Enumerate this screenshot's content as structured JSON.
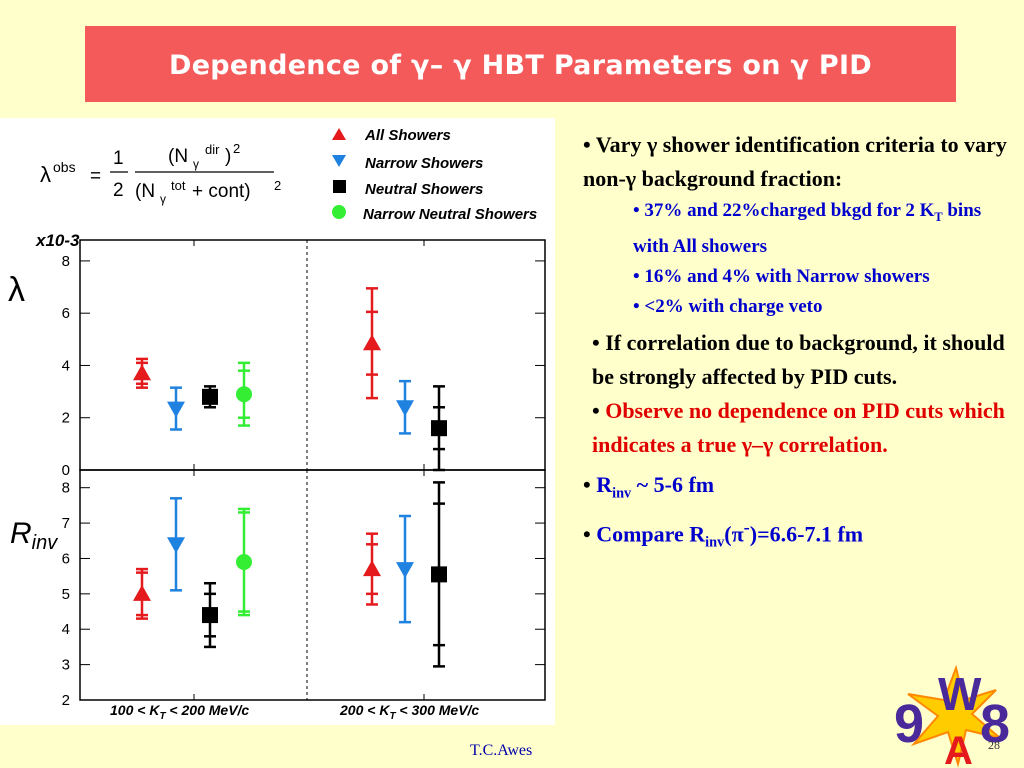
{
  "slide": {
    "title": "Dependence of γ– γ HBT Parameters on γ PID",
    "footer": "T.C.Awes",
    "page": "28",
    "logo_text": [
      "9",
      "W",
      "A",
      "8"
    ]
  },
  "formula": {
    "lhs": "λ",
    "lhs_sup": "obs",
    "eq": "=",
    "num1": "1",
    "den1": "2",
    "num2_a": "(N",
    "num2_sub": "γ",
    "num2_sup": "dir",
    "num2_b": ")",
    "num2_exp": "2",
    "den2_a": "(N",
    "den2_sub": "γ",
    "den2_sup": "tot",
    "den2_b": " + cont)",
    "den2_exp": "2"
  },
  "legend": [
    {
      "label": "All Showers",
      "color": "#e41a1c",
      "marker": "triangle-up"
    },
    {
      "label": "Narrow Showers",
      "color": "#1f82e0",
      "marker": "triangle-down"
    },
    {
      "label": "Neutral Showers",
      "color": "#000000",
      "marker": "square"
    },
    {
      "label": "Narrow Neutral Showers",
      "color": "#33ee33",
      "marker": "circle"
    }
  ],
  "bullets": {
    "b1_pre": "• Vary ",
    "b1_gamma": "γ",
    "b1_post": " shower identification criteria to vary non-γ background fraction:",
    "s1_a": "• 37% and 22%charged bkgd for 2 K",
    "s1_sub": "T",
    "s1_b": " bins with All showers",
    "s2": "• 16% and 4% with Narrow showers",
    "s3": "•  <2% with charge veto",
    "b2_text": "• If correlation due to background,  it should be strongly affected by PID cuts.",
    "b2_dot": "• ",
    "b2_red": "Observe no dependence on PID cuts which indicates a true γ–γ correlation.",
    "b3_dot": "• ",
    "b3_a": "R",
    "b3_sub": "inv",
    "b3_b": " ~ 5-6 fm",
    "b4_dot": "• ",
    "b4_a": "Compare R",
    "b4_sub": "inv",
    "b4_b": "(π",
    "b4_sup": "-",
    "b4_c": ")=6.6-7.1 fm"
  },
  "chart_data": [
    {
      "type": "scatter",
      "panel": "lambda",
      "ylabel": "λ",
      "yscale_label": "x10-3",
      "ylim": [
        0,
        8.8
      ],
      "yticks": [
        0,
        2,
        4,
        6,
        8
      ],
      "categories": [
        "100 < KT < 200 MeV/c",
        "200 < KT < 300 MeV/c"
      ],
      "series": [
        {
          "name": "All Showers",
          "points": [
            {
              "bin": 0,
              "y": 3.7,
              "err": 0.55,
              "syst": 0.4
            },
            {
              "bin": 1,
              "y": 4.85,
              "err": 2.1,
              "syst": 1.2
            }
          ]
        },
        {
          "name": "Narrow Showers",
          "points": [
            {
              "bin": 0,
              "y": 2.35,
              "err": 0.8
            },
            {
              "bin": 1,
              "y": 2.4,
              "err": 1.0
            }
          ]
        },
        {
          "name": "Neutral Showers",
          "points": [
            {
              "bin": 0,
              "y": 2.8,
              "err": 0.4,
              "syst": 0.25
            },
            {
              "bin": 1,
              "y": 1.6,
              "err": 1.6,
              "syst": 0.8
            }
          ]
        },
        {
          "name": "Narrow Neutral Showers",
          "points": [
            {
              "bin": 0,
              "y": 2.9,
              "err": 1.2,
              "syst": 0.9
            }
          ]
        }
      ]
    },
    {
      "type": "scatter",
      "panel": "rinv",
      "ylabel": "Rinv",
      "ylim": [
        2,
        8.5
      ],
      "yticks": [
        2,
        3,
        4,
        5,
        6,
        7,
        8
      ],
      "xlabels": [
        "100 < KT < 200 MeV/c",
        "200 < KT < 300 MeV/c"
      ],
      "series": [
        {
          "name": "All Showers",
          "points": [
            {
              "bin": 0,
              "y": 5.0,
              "err": 0.7,
              "syst": 0.6
            },
            {
              "bin": 1,
              "y": 5.7,
              "err": 1.0,
              "syst": 0.7
            }
          ]
        },
        {
          "name": "Narrow Showers",
          "points": [
            {
              "bin": 0,
              "y": 6.4,
              "err": 1.3
            },
            {
              "bin": 1,
              "y": 5.7,
              "err": 1.5
            }
          ]
        },
        {
          "name": "Neutral Showers",
          "points": [
            {
              "bin": 0,
              "y": 4.4,
              "err": 0.9,
              "syst": 0.6
            },
            {
              "bin": 1,
              "y": 5.55,
              "err": 2.6,
              "syst": 2.0
            }
          ]
        },
        {
          "name": "Narrow Neutral Showers",
          "points": [
            {
              "bin": 0,
              "y": 5.9,
              "err": 1.5,
              "syst": 1.4
            }
          ]
        }
      ]
    }
  ]
}
